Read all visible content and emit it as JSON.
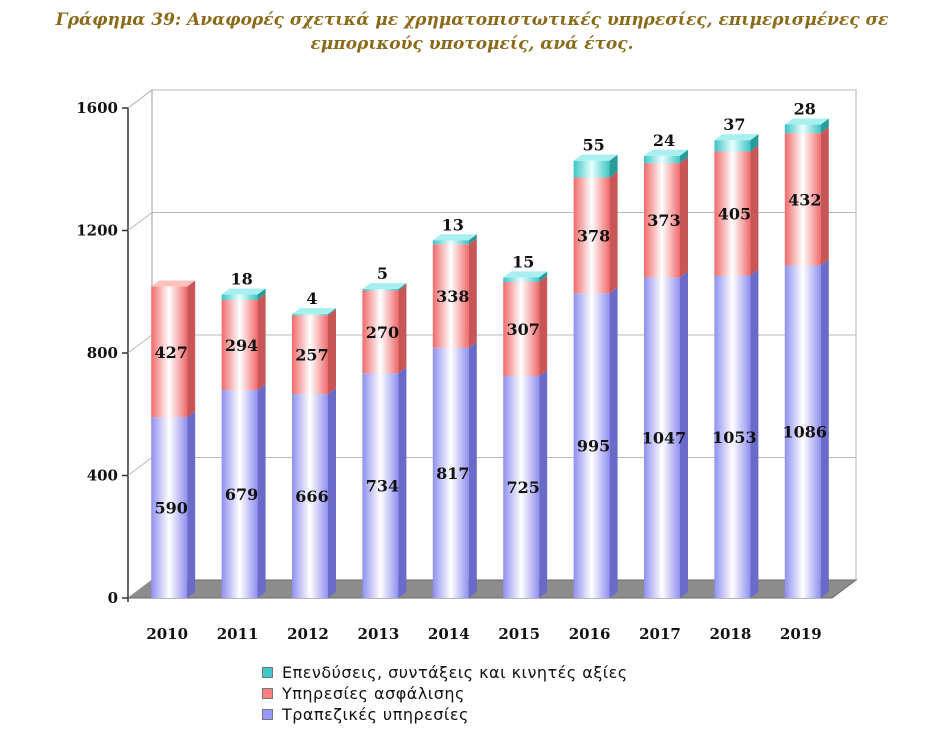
{
  "chart_data": {
    "type": "bar",
    "stacked": true,
    "title": "Γράφημα 39: Αναφορές σχετικά με χρηματοπιστωτικές υπηρεσίες, επιμερισμένες σε εμπορικούς υποτομείς, ανά έτος.",
    "categories": [
      "2010",
      "2011",
      "2012",
      "2013",
      "2014",
      "2015",
      "2016",
      "2017",
      "2018",
      "2019"
    ],
    "ylim": [
      0,
      1600
    ],
    "yticks": [
      0,
      400,
      800,
      1200,
      1600
    ],
    "series": [
      {
        "name": "Τραπεζικές υπηρεσίες",
        "color": "#9999ff",
        "values": [
          590,
          679,
          666,
          734,
          817,
          725,
          995,
          1047,
          1053,
          1086
        ]
      },
      {
        "name": "Υπηρεσίες ασφάλισης",
        "color": "#ff8080",
        "values": [
          427,
          294,
          257,
          270,
          338,
          307,
          378,
          373,
          405,
          432
        ]
      },
      {
        "name": "Επενδύσεις, συντάξεις και κινητές αξίες",
        "color": "#40c8c8",
        "values": [
          null,
          18,
          4,
          5,
          13,
          15,
          55,
          24,
          37,
          28
        ]
      }
    ],
    "legend": {
      "position": "bottom",
      "entries": [
        "Επενδύσεις, συντάξεις και κινητές αξίες",
        "Υπηρεσίες ασφάλισης",
        "Τραπεζικές υπηρεσίες"
      ]
    }
  }
}
